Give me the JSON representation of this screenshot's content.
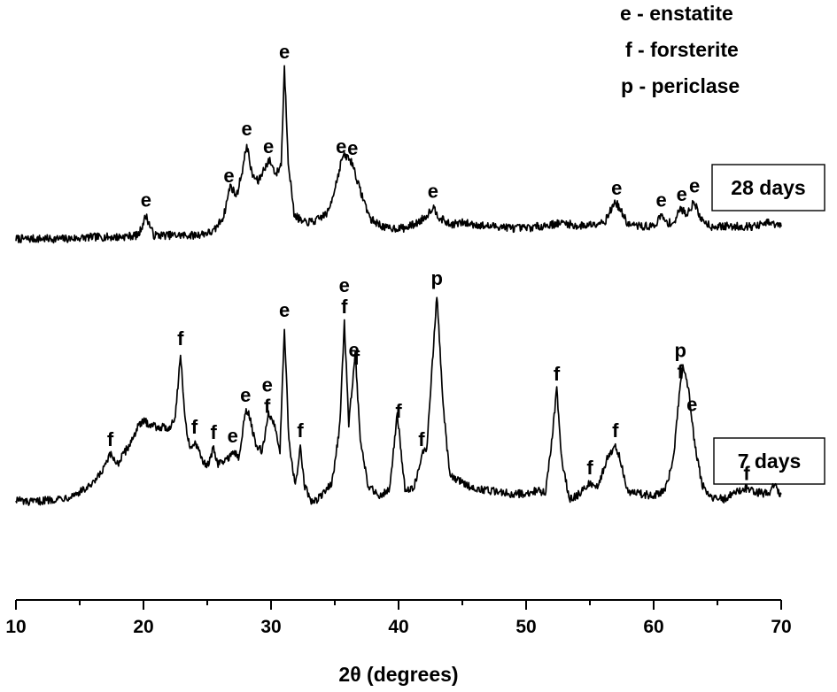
{
  "chart_data": {
    "type": "line",
    "title": "",
    "xlabel": "2θ (degrees)",
    "ylabel": "",
    "xlim": [
      10,
      70
    ],
    "x_ticks": [
      10,
      20,
      30,
      40,
      50,
      60,
      70
    ],
    "y_axis_shown": false,
    "grid": false,
    "legend": {
      "placement": "top-right",
      "entries": [
        "e - enstatite",
        "f - forsterite",
        "p - periclase"
      ]
    },
    "series": [
      {
        "name": "28 days",
        "points": [
          [
            10,
            4
          ],
          [
            12,
            4
          ],
          [
            14,
            4
          ],
          [
            16,
            5
          ],
          [
            18,
            5
          ],
          [
            19.6,
            6
          ],
          [
            20.2,
            17
          ],
          [
            20.8,
            6
          ],
          [
            22,
            6
          ],
          [
            24,
            6
          ],
          [
            25.5,
            8
          ],
          [
            26.3,
            17
          ],
          [
            26.8,
            34
          ],
          [
            27.3,
            28
          ],
          [
            27.8,
            44
          ],
          [
            28.1,
            57
          ],
          [
            28.5,
            40
          ],
          [
            29.0,
            36
          ],
          [
            29.5,
            44
          ],
          [
            29.9,
            48
          ],
          [
            30.4,
            40
          ],
          [
            30.8,
            46
          ],
          [
            31.05,
            100
          ],
          [
            31.35,
            48
          ],
          [
            31.8,
            18
          ],
          [
            32.5,
            13
          ],
          [
            33.5,
            14
          ],
          [
            34.5,
            19
          ],
          [
            35.2,
            38
          ],
          [
            35.6,
            50
          ],
          [
            36.0,
            50
          ],
          [
            36.4,
            46
          ],
          [
            36.9,
            33
          ],
          [
            37.8,
            15
          ],
          [
            39,
            10
          ],
          [
            40.5,
            10
          ],
          [
            41.5,
            13
          ],
          [
            42.2,
            17
          ],
          [
            42.7,
            22
          ],
          [
            43.2,
            16
          ],
          [
            44,
            12
          ],
          [
            45,
            13
          ],
          [
            46,
            12
          ],
          [
            47,
            11
          ],
          [
            48,
            11
          ],
          [
            49,
            10
          ],
          [
            50,
            10
          ],
          [
            51,
            11
          ],
          [
            52,
            12
          ],
          [
            53,
            13
          ],
          [
            54,
            11
          ],
          [
            55,
            12
          ],
          [
            56.2,
            14
          ],
          [
            57.0,
            25
          ],
          [
            57.4,
            20
          ],
          [
            58,
            12
          ],
          [
            59,
            11
          ],
          [
            60,
            11
          ],
          [
            60.6,
            17
          ],
          [
            61.0,
            13
          ],
          [
            61.6,
            13
          ],
          [
            62.1,
            21
          ],
          [
            62.6,
            18
          ],
          [
            63.2,
            25
          ],
          [
            63.6,
            16
          ],
          [
            64.5,
            11
          ],
          [
            66,
            11
          ],
          [
            68,
            11
          ],
          [
            69,
            13
          ],
          [
            70,
            11
          ]
        ],
        "peaks": [
          {
            "x": 20.2,
            "labels": [
              "e"
            ]
          },
          {
            "x": 26.7,
            "labels": [
              "e"
            ]
          },
          {
            "x": 28.1,
            "labels": [
              "e"
            ]
          },
          {
            "x": 29.8,
            "labels": [
              "e"
            ]
          },
          {
            "x": 31.05,
            "labels": [
              "e"
            ]
          },
          {
            "x": 35.5,
            "labels": [
              "e"
            ]
          },
          {
            "x": 36.4,
            "labels": [
              "e"
            ]
          },
          {
            "x": 42.7,
            "labels": [
              "e"
            ]
          },
          {
            "x": 57.1,
            "labels": [
              "e"
            ]
          },
          {
            "x": 60.6,
            "labels": [
              "e"
            ]
          },
          {
            "x": 62.2,
            "labels": [
              "e"
            ]
          },
          {
            "x": 63.2,
            "labels": [
              "e"
            ]
          }
        ]
      },
      {
        "name": "7 days",
        "points": [
          [
            10,
            8
          ],
          [
            11,
            6
          ],
          [
            12,
            7
          ],
          [
            13,
            8
          ],
          [
            14,
            9
          ],
          [
            15,
            12
          ],
          [
            16,
            16
          ],
          [
            16.8,
            24
          ],
          [
            17.4,
            33
          ],
          [
            18,
            28
          ],
          [
            19,
            40
          ],
          [
            19.5,
            48
          ],
          [
            20,
            52
          ],
          [
            21,
            49
          ],
          [
            22,
            48
          ],
          [
            22.5,
            55
          ],
          [
            22.9,
            90
          ],
          [
            23.3,
            50
          ],
          [
            23.7,
            36
          ],
          [
            24.0,
            40
          ],
          [
            24.5,
            32
          ],
          [
            25.0,
            26
          ],
          [
            25.5,
            37
          ],
          [
            25.8,
            28
          ],
          [
            26.5,
            30
          ],
          [
            27.0,
            35
          ],
          [
            27.5,
            31
          ],
          [
            28.0,
            58
          ],
          [
            28.3,
            56
          ],
          [
            28.8,
            38
          ],
          [
            29.3,
            35
          ],
          [
            29.8,
            56
          ],
          [
            30.3,
            50
          ],
          [
            30.7,
            35
          ],
          [
            31.05,
            106
          ],
          [
            31.4,
            40
          ],
          [
            31.9,
            15
          ],
          [
            32.3,
            38
          ],
          [
            32.6,
            16
          ],
          [
            33.2,
            6
          ],
          [
            34,
            10
          ],
          [
            34.8,
            18
          ],
          [
            35.4,
            50
          ],
          [
            35.75,
            108
          ],
          [
            36.1,
            50
          ],
          [
            36.6,
            92
          ],
          [
            37.0,
            40
          ],
          [
            37.6,
            16
          ],
          [
            38.5,
            10
          ],
          [
            39.3,
            14
          ],
          [
            39.9,
            56
          ],
          [
            40.5,
            14
          ],
          [
            41.2,
            14
          ],
          [
            41.8,
            33
          ],
          [
            42.2,
            36
          ],
          [
            42.7,
            90
          ],
          [
            43.0,
            124
          ],
          [
            43.5,
            60
          ],
          [
            44,
            22
          ],
          [
            45,
            17
          ],
          [
            46,
            14
          ],
          [
            47,
            13
          ],
          [
            48,
            12
          ],
          [
            49,
            11
          ],
          [
            50,
            11
          ],
          [
            51,
            13
          ],
          [
            51.5,
            11
          ],
          [
            52.0,
            40
          ],
          [
            52.4,
            70
          ],
          [
            52.8,
            30
          ],
          [
            53.4,
            8
          ],
          [
            54,
            10
          ],
          [
            55,
            17
          ],
          [
            55.6,
            15
          ],
          [
            56.3,
            30
          ],
          [
            57.0,
            38
          ],
          [
            57.4,
            30
          ],
          [
            58,
            12
          ],
          [
            59,
            11
          ],
          [
            60,
            10
          ],
          [
            60.8,
            12
          ],
          [
            61.5,
            28
          ],
          [
            62.0,
            66
          ],
          [
            62.3,
            82
          ],
          [
            62.7,
            72
          ],
          [
            63.2,
            40
          ],
          [
            63.8,
            16
          ],
          [
            64.5,
            9
          ],
          [
            65.5,
            8
          ],
          [
            66.5,
            12
          ],
          [
            67.2,
            14
          ],
          [
            68,
            12
          ],
          [
            69,
            11
          ],
          [
            69.5,
            16
          ],
          [
            70,
            9
          ]
        ],
        "peaks": [
          {
            "x": 17.4,
            "labels": [
              "f"
            ]
          },
          {
            "x": 22.9,
            "labels": [
              "f"
            ]
          },
          {
            "x": 24.0,
            "labels": [
              "f"
            ]
          },
          {
            "x": 25.5,
            "labels": [
              "f"
            ]
          },
          {
            "x": 27.0,
            "labels": [
              "e"
            ]
          },
          {
            "x": 28.0,
            "labels": [
              "e"
            ]
          },
          {
            "x": 29.7,
            "labels": [
              "e",
              "f"
            ]
          },
          {
            "x": 31.05,
            "labels": [
              "e"
            ]
          },
          {
            "x": 32.3,
            "labels": [
              "f"
            ]
          },
          {
            "x": 35.75,
            "labels": [
              "e",
              "f"
            ]
          },
          {
            "x": 36.5,
            "labels": [
              "e"
            ]
          },
          {
            "x": 36.7,
            "labels": [
              "f"
            ]
          },
          {
            "x": 40.0,
            "labels": [
              "f"
            ]
          },
          {
            "x": 41.8,
            "labels": [
              "f"
            ]
          },
          {
            "x": 43.0,
            "labels": [
              "p"
            ]
          },
          {
            "x": 52.4,
            "labels": [
              "f"
            ]
          },
          {
            "x": 55.0,
            "labels": [
              "f"
            ]
          },
          {
            "x": 57.0,
            "labels": [
              "f"
            ]
          },
          {
            "x": 62.1,
            "labels": [
              "p",
              "f"
            ]
          },
          {
            "x": 63.0,
            "labels": [
              "e"
            ]
          },
          {
            "x": 67.3,
            "labels": [
              "f"
            ]
          }
        ]
      }
    ]
  }
}
